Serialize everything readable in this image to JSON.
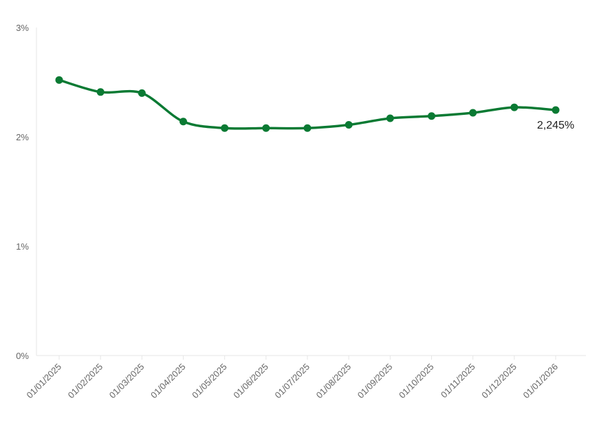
{
  "chart_data": {
    "type": "line",
    "title": "",
    "xlabel": "",
    "ylabel": "",
    "x": [
      "01/01/2025",
      "01/02/2025",
      "01/03/2025",
      "01/04/2025",
      "01/05/2025",
      "01/06/2025",
      "01/07/2025",
      "01/08/2025",
      "01/09/2025",
      "01/10/2025",
      "01/11/2025",
      "01/12/2025",
      "01/01/2026"
    ],
    "series": [
      {
        "values": [
          2.52,
          2.41,
          2.4,
          2.14,
          2.08,
          2.08,
          2.08,
          2.11,
          2.17,
          2.19,
          2.22,
          2.27,
          2.245
        ],
        "color": "#0a7a33"
      }
    ],
    "ylim": [
      0,
      3
    ],
    "yticks": [
      0,
      1,
      2,
      3
    ],
    "ytick_labels": [
      "0%",
      "1%",
      "2%",
      "3%"
    ],
    "annotations": [
      {
        "index": 12,
        "text": "2,245%"
      }
    ],
    "grid": false,
    "legend": "none"
  }
}
